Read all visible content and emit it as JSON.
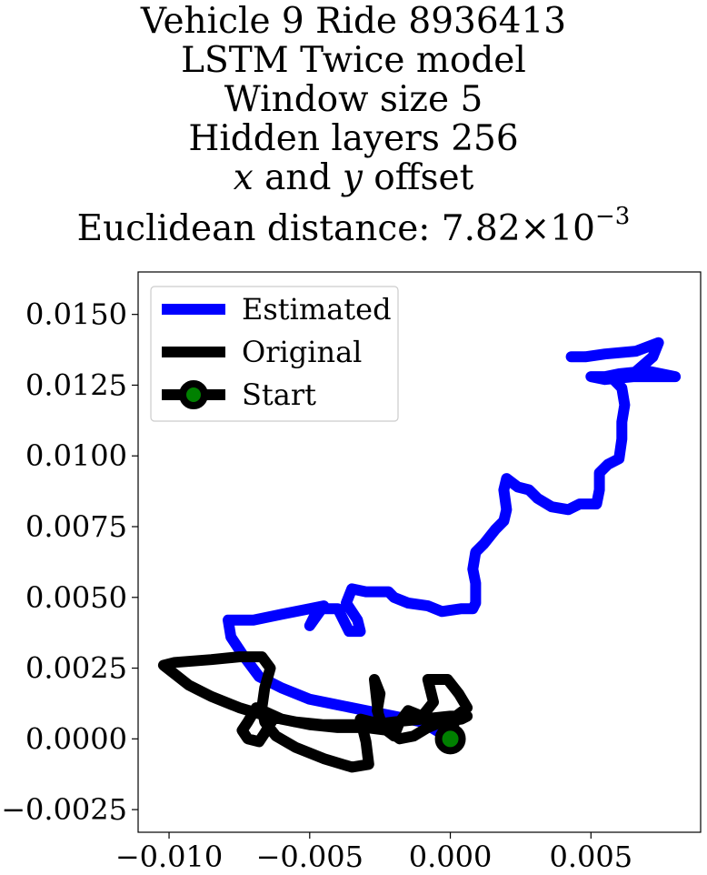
{
  "title": {
    "line1": "Vehicle 9 Ride 8936413",
    "line2": "LSTM Twice model",
    "line3": "Window size 5",
    "line4": "Hidden layers 256",
    "line5_var_x": "x",
    "line5_and": " and ",
    "line5_var_y": "y",
    "line5_rest": " offset",
    "line6_text": "Euclidean distance: 7.82",
    "line6_times": "×",
    "line6_base": "10",
    "line6_exp": "−3"
  },
  "chart_data": {
    "type": "line",
    "xlim": [
      -0.0111,
      0.0089
    ],
    "ylim": [
      -0.0033,
      0.0165
    ],
    "xticks": [
      -0.01,
      -0.005,
      0.0,
      0.005
    ],
    "xtick_labels": [
      "−0.010",
      "−0.005",
      "0.000",
      "0.005"
    ],
    "yticks": [
      -0.0025,
      0.0,
      0.0025,
      0.005,
      0.0075,
      0.01,
      0.0125,
      0.015
    ],
    "ytick_labels": [
      "−0.0025",
      "0.0000",
      "0.0025",
      "0.0050",
      "0.0075",
      "0.0100",
      "0.0125",
      "0.0150"
    ],
    "grid": false,
    "legend_position": "top-left",
    "series": [
      {
        "name": "Estimated",
        "color": "#0000ff",
        "points": [
          [
            0.0,
            0.0
          ],
          [
            -0.001,
            0.0006
          ],
          [
            -0.002,
            0.0008
          ],
          [
            -0.003,
            0.001
          ],
          [
            -0.004,
            0.0012
          ],
          [
            -0.005,
            0.0014
          ],
          [
            -0.006,
            0.0018
          ],
          [
            -0.0068,
            0.0022
          ],
          [
            -0.0074,
            0.003
          ],
          [
            -0.0078,
            0.0036
          ],
          [
            -0.0079,
            0.0042
          ],
          [
            -0.007,
            0.0042
          ],
          [
            -0.006,
            0.0044
          ],
          [
            -0.005,
            0.0046
          ],
          [
            -0.0045,
            0.0047
          ],
          [
            -0.005,
            0.004
          ],
          [
            -0.0047,
            0.0046
          ],
          [
            -0.004,
            0.0046
          ],
          [
            -0.0036,
            0.0038
          ],
          [
            -0.0032,
            0.0038
          ],
          [
            -0.0033,
            0.0042
          ],
          [
            -0.0037,
            0.0048
          ],
          [
            -0.0035,
            0.0053
          ],
          [
            -0.003,
            0.0052
          ],
          [
            -0.0022,
            0.0052
          ],
          [
            -0.002,
            0.005
          ],
          [
            -0.0015,
            0.0048
          ],
          [
            -0.0008,
            0.0047
          ],
          [
            -0.0003,
            0.0045
          ],
          [
            0.0004,
            0.0046
          ],
          [
            0.0008,
            0.0046
          ],
          [
            0.0009,
            0.0048
          ],
          [
            0.0009,
            0.0055
          ],
          [
            0.0008,
            0.006
          ],
          [
            0.0009,
            0.0066
          ],
          [
            0.0012,
            0.0069
          ],
          [
            0.0016,
            0.0074
          ],
          [
            0.0019,
            0.0077
          ],
          [
            0.002,
            0.0081
          ],
          [
            0.0019,
            0.0088
          ],
          [
            0.002,
            0.0092
          ],
          [
            0.0024,
            0.0089
          ],
          [
            0.0028,
            0.0088
          ],
          [
            0.0031,
            0.0085
          ],
          [
            0.0036,
            0.0082
          ],
          [
            0.0042,
            0.0081
          ],
          [
            0.0046,
            0.0083
          ],
          [
            0.0052,
            0.0083
          ],
          [
            0.0053,
            0.0088
          ],
          [
            0.0053,
            0.0094
          ],
          [
            0.0056,
            0.0097
          ],
          [
            0.006,
            0.0099
          ],
          [
            0.0061,
            0.0106
          ],
          [
            0.0061,
            0.0112
          ],
          [
            0.0062,
            0.0118
          ],
          [
            0.0061,
            0.0124
          ],
          [
            0.0057,
            0.0128
          ],
          [
            0.005,
            0.0128
          ],
          [
            0.0055,
            0.0127
          ],
          [
            0.0065,
            0.0128
          ],
          [
            0.0072,
            0.0128
          ],
          [
            0.008,
            0.0128
          ],
          [
            0.007,
            0.013
          ],
          [
            0.006,
            0.0129
          ],
          [
            0.0055,
            0.0128
          ],
          [
            0.0065,
            0.0129
          ],
          [
            0.0072,
            0.0135
          ],
          [
            0.0074,
            0.014
          ],
          [
            0.0066,
            0.0137
          ],
          [
            0.0055,
            0.0136
          ],
          [
            0.0048,
            0.0135
          ],
          [
            0.0043,
            0.0135
          ]
        ]
      },
      {
        "name": "Original",
        "color": "#000000",
        "points": [
          [
            0.0,
            0.0
          ],
          [
            0.0002,
            0.0008
          ],
          [
            0.0006,
            0.0011
          ],
          [
            0.0003,
            0.0016
          ],
          [
            -0.0001,
            0.0021
          ],
          [
            -0.0008,
            0.0021
          ],
          [
            -0.0006,
            0.0013
          ],
          [
            -0.001,
            0.0008
          ],
          [
            -0.0015,
            0.001
          ],
          [
            -0.0018,
            0.0006
          ],
          [
            -0.002,
            0.0001
          ],
          [
            -0.0024,
            0.0004
          ],
          [
            -0.0026,
            0.001
          ],
          [
            -0.0025,
            0.0016
          ],
          [
            -0.0027,
            0.0021
          ],
          [
            -0.0026,
            0.0012
          ],
          [
            -0.0025,
            0.0004
          ],
          [
            -0.0028,
            0.0006
          ],
          [
            -0.0032,
            0.0007
          ],
          [
            -0.003,
            -0.0001
          ],
          [
            -0.0029,
            -0.0009
          ],
          [
            -0.0035,
            -0.001
          ],
          [
            -0.0045,
            -0.0007
          ],
          [
            -0.0055,
            -0.0003
          ],
          [
            -0.0062,
            0.0001
          ],
          [
            -0.0066,
            0.0006
          ],
          [
            -0.0067,
            0.0011
          ],
          [
            -0.0066,
            0.0018
          ],
          [
            -0.0064,
            0.0025
          ],
          [
            -0.0067,
            0.0029
          ],
          [
            -0.0075,
            0.0029
          ],
          [
            -0.0085,
            0.0028
          ],
          [
            -0.0098,
            0.0027
          ],
          [
            -0.0102,
            0.0026
          ],
          [
            -0.0093,
            0.0019
          ],
          [
            -0.0085,
            0.0015
          ],
          [
            -0.0075,
            0.0011
          ],
          [
            -0.0065,
            0.0008
          ],
          [
            -0.0055,
            0.0006
          ],
          [
            -0.0045,
            0.0005
          ],
          [
            -0.0035,
            0.0005
          ],
          [
            -0.0028,
            0.0005
          ],
          [
            -0.002,
            0.0006
          ],
          [
            -0.001,
            0.0007
          ],
          [
            0.0,
            0.0008
          ],
          [
            0.0006,
            0.0008
          ],
          [
            0.0004,
            0.0007
          ],
          [
            -0.0003,
            0.0006
          ],
          [
            -0.0008,
            0.0004
          ],
          [
            -0.0013,
            0.0001
          ],
          [
            -0.0018,
            0.0
          ],
          [
            -0.0022,
            0.0003
          ],
          [
            -0.003,
            0.0004
          ],
          [
            -0.004,
            0.0004
          ],
          [
            -0.005,
            0.0005
          ],
          [
            -0.006,
            0.0007
          ],
          [
            -0.0069,
            0.0011
          ],
          [
            -0.0072,
            0.0006
          ],
          [
            -0.0074,
            0.0003
          ],
          [
            -0.0072,
            0.0
          ],
          [
            -0.0068,
            -0.0001
          ],
          [
            -0.0066,
            0.0002
          ],
          [
            -0.0063,
            0.0007
          ]
        ]
      },
      {
        "name": "Start",
        "color": "#008000",
        "points": [
          [
            0.0,
            0.0
          ]
        ]
      }
    ]
  }
}
